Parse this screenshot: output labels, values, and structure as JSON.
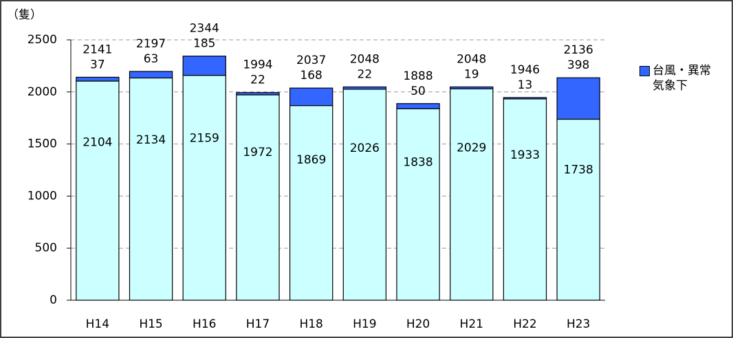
{
  "chart_data": {
    "type": "stacked-bar",
    "y_label": "（隻）",
    "categories": [
      "H14",
      "H15",
      "H16",
      "H17",
      "H18",
      "H19",
      "H20",
      "H21",
      "H22",
      "H23"
    ],
    "series": [
      {
        "color": "#ccffff",
        "values": [
          2104,
          2134,
          2159,
          1972,
          1869,
          2026,
          1838,
          2029,
          1933,
          1738
        ]
      },
      {
        "name": "台風・異常気象下",
        "color": "#3366ff",
        "values": [
          37,
          63,
          185,
          22,
          168,
          22,
          50,
          19,
          13,
          398
        ]
      }
    ],
    "totals": [
      2141,
      2197,
      2344,
      1994,
      2037,
      2048,
      1888,
      2048,
      1946,
      2136
    ],
    "ylim": [
      0,
      2500
    ],
    "yticks": [
      0,
      500,
      1000,
      1500,
      2000,
      2500
    ],
    "grid": true,
    "legend": "right"
  }
}
